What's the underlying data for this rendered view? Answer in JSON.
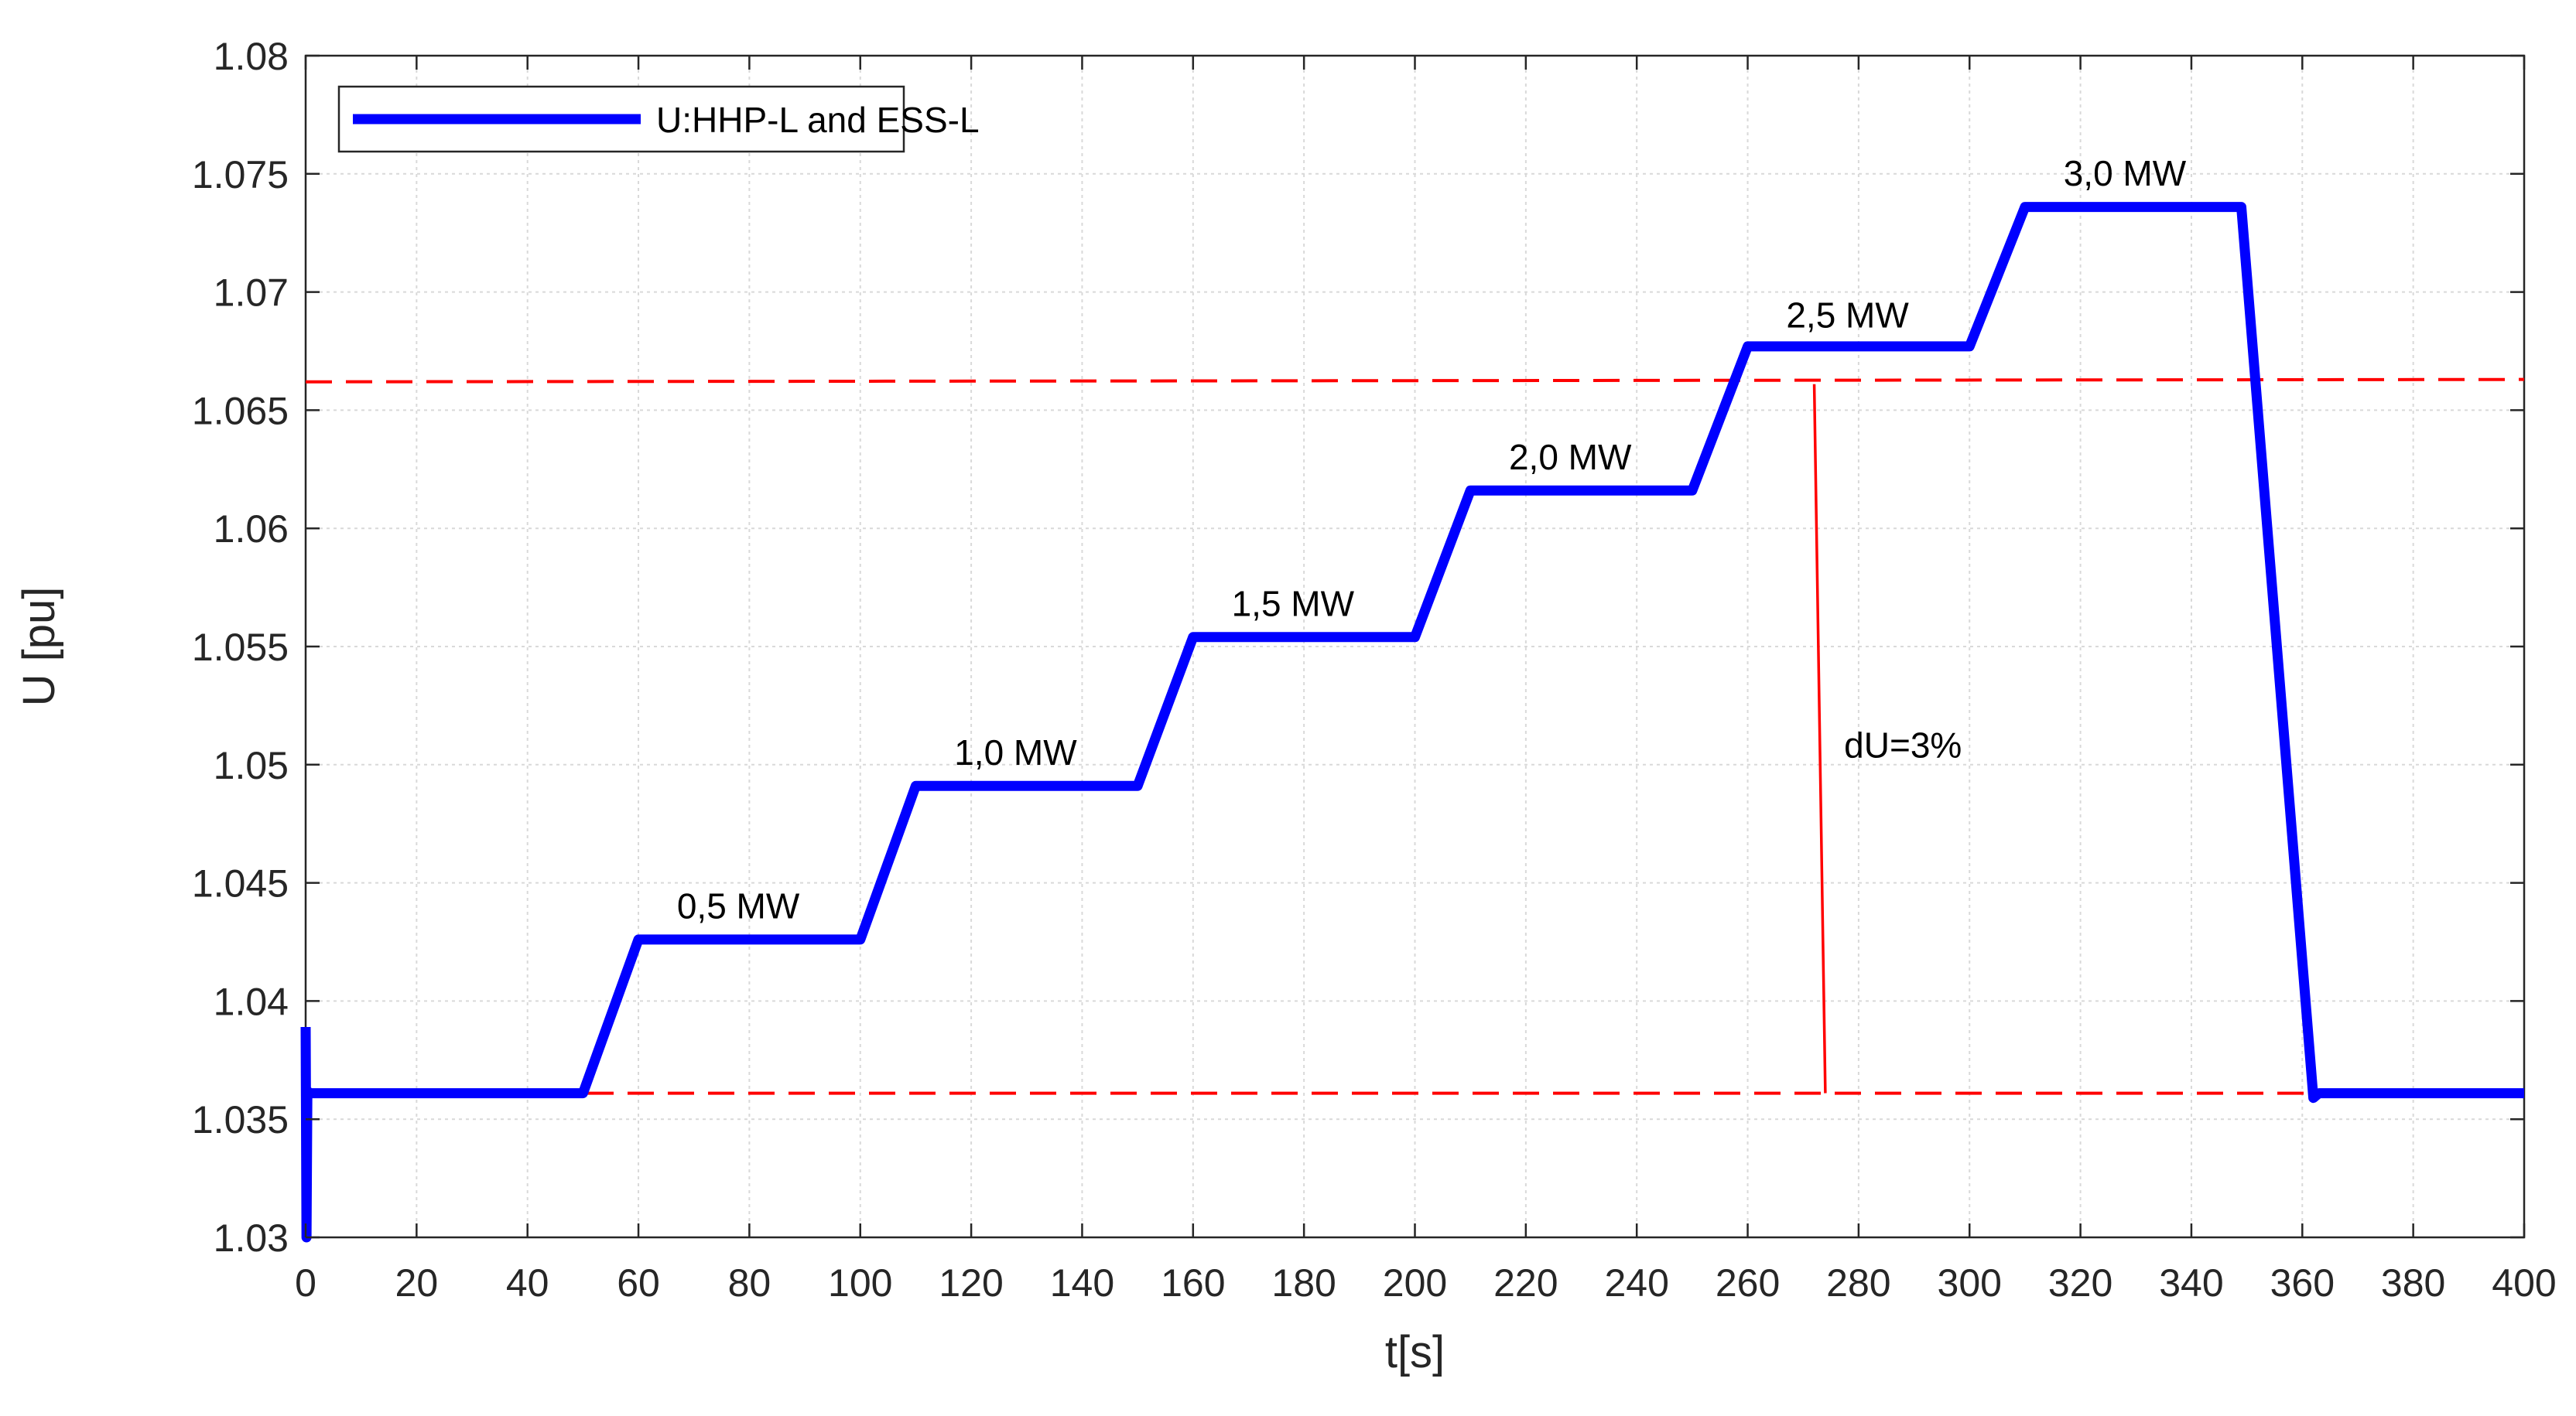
{
  "chart_data": {
    "type": "line",
    "title": "",
    "xlabel": "t[s]",
    "ylabel": "U [pu]",
    "xlim": [
      0,
      400
    ],
    "ylim": [
      1.03,
      1.08
    ],
    "xticks": [
      0,
      20,
      40,
      60,
      80,
      100,
      120,
      140,
      160,
      180,
      200,
      220,
      240,
      260,
      280,
      300,
      320,
      340,
      360,
      380,
      400
    ],
    "xtick_labels": [
      "0",
      "20",
      "40",
      "60",
      "80",
      "100",
      "120",
      "140",
      "160",
      "180",
      "200",
      "220",
      "240",
      "260",
      "280",
      "300",
      "320",
      "340",
      "360",
      "380",
      "400"
    ],
    "yticks": [
      1.03,
      1.035,
      1.04,
      1.045,
      1.05,
      1.055,
      1.06,
      1.065,
      1.07,
      1.075,
      1.08
    ],
    "ytick_labels": [
      "1.03",
      "1.035",
      "1.04",
      "1.045",
      "1.05",
      "1.055",
      "1.06",
      "1.065",
      "1.07",
      "1.075",
      "1.08"
    ],
    "grid": true,
    "legend_position": "top-left",
    "series": [
      {
        "name": "U:HHP-L and ESS-L",
        "color": "#0000ff",
        "x": [
          0,
          0.15,
          0.3,
          0.6,
          50,
          60,
          100,
          110,
          150,
          160,
          200,
          210,
          250,
          260,
          300,
          310,
          349,
          362,
          363,
          400
        ],
        "y": [
          1.0389,
          1.03,
          1.0362,
          1.0361,
          1.0361,
          1.0426,
          1.0426,
          1.0491,
          1.0491,
          1.0554,
          1.0554,
          1.0616,
          1.0616,
          1.0677,
          1.0677,
          1.0736,
          1.0736,
          1.0359,
          1.0361,
          1.0361
        ]
      }
    ],
    "reference_lines": [
      {
        "color": "#ff0000",
        "style": "dashed",
        "x": [
          0,
          400
        ],
        "y": [
          1.0361,
          1.0361
        ]
      },
      {
        "color": "#ff0000",
        "style": "dashed",
        "x": [
          0,
          400
        ],
        "y": [
          1.0662,
          1.0663
        ]
      },
      {
        "color": "#ff0000",
        "style": "solid",
        "x": [
          272,
          274
        ],
        "y": [
          1.0661,
          1.0361
        ]
      }
    ],
    "annotations": [
      {
        "text": "0,5 MW",
        "x": 78,
        "y": 1.0435
      },
      {
        "text": "1,0 MW",
        "x": 128,
        "y": 1.05
      },
      {
        "text": "1,5 MW",
        "x": 178,
        "y": 1.0563
      },
      {
        "text": "2,0 MW",
        "x": 228,
        "y": 1.0625
      },
      {
        "text": "2,5 MW",
        "x": 278,
        "y": 1.0685
      },
      {
        "text": "3,0 MW",
        "x": 328,
        "y": 1.0745
      },
      {
        "text": "dU=3%",
        "x": 288,
        "y": 1.0503
      }
    ],
    "colors": {
      "series": "#0000ff",
      "reference": "#ff0000",
      "grid": "#d9d9d9",
      "axis": "#262626"
    }
  }
}
